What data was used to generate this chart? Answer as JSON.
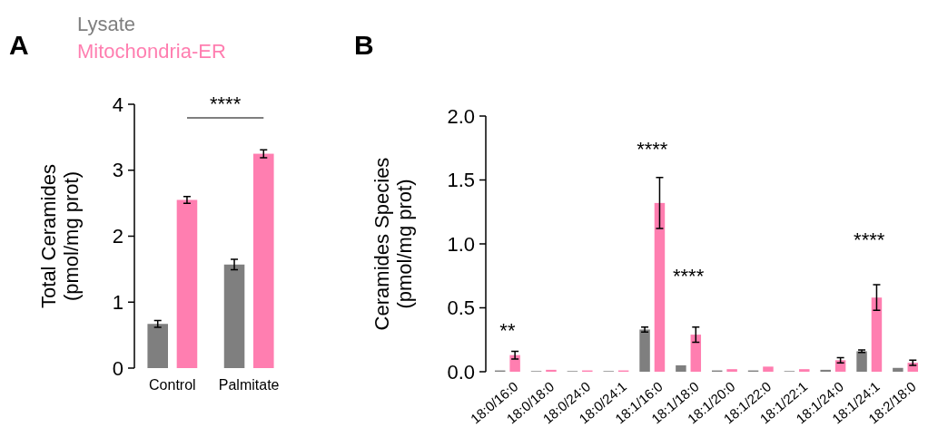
{
  "chart_data": [
    {
      "type": "bar",
      "title": "A",
      "ylabel": "Total Ceramides\n(pmol/mg prot)",
      "categories": [
        "Control",
        "Palmitate"
      ],
      "ylim": [
        0,
        4
      ],
      "yticks": [
        0,
        1,
        2,
        3,
        4
      ],
      "grid": false,
      "legend": "top left",
      "series": [
        {
          "name": "Lysate",
          "color": "#7f7f7f",
          "values": [
            0.67,
            1.57
          ],
          "errors": [
            0.05,
            0.08
          ]
        },
        {
          "name": "Mitochondria-ER",
          "color": "#ff7eb0",
          "values": [
            2.55,
            3.25
          ],
          "errors": [
            0.05,
            0.06
          ]
        }
      ],
      "annotations": [
        "****"
      ]
    },
    {
      "type": "bar",
      "title": "B",
      "ylabel": "Ceramides Species\n(pmol/mg prot)",
      "categories": [
        "18:0/16:0",
        "18:0/18:0",
        "18:0/24:0",
        "18:0/24:1",
        "18:1/16:0",
        "18:1/18:0",
        "18:1/20:0",
        "18:1/22:0",
        "18:1/22:1",
        "18:1/24:0",
        "18:1/24:1",
        "18:2/18:0"
      ],
      "ylim": [
        0,
        2
      ],
      "yticks": [
        {
          "value": 0,
          "label": "0.0"
        },
        {
          "value": 0.5,
          "label": "0.5"
        },
        {
          "value": 1,
          "label": "1.0"
        },
        {
          "value": 1.5,
          "label": "1.5"
        },
        {
          "value": 2,
          "label": "2.0"
        }
      ],
      "grid": false,
      "series": [
        {
          "color": "#7f7f7f",
          "values": [
            0.01,
            0.005,
            0.005,
            0.005,
            0.33,
            0.05,
            0.01,
            0.01,
            0.005,
            0.015,
            0.16,
            0.03
          ],
          "errors": [
            null,
            null,
            null,
            null,
            0.02,
            null,
            null,
            null,
            null,
            null,
            0.01,
            null
          ]
        },
        {
          "color": "#ff7eb0",
          "values": [
            0.13,
            0.015,
            0.01,
            0.01,
            1.32,
            0.29,
            0.02,
            0.04,
            0.02,
            0.09,
            0.58,
            0.07
          ],
          "errors": [
            0.03,
            null,
            null,
            null,
            0.2,
            0.06,
            null,
            null,
            null,
            0.02,
            0.1,
            0.02
          ]
        }
      ],
      "annotations": [
        "**",
        "****",
        "****",
        "****"
      ]
    }
  ]
}
